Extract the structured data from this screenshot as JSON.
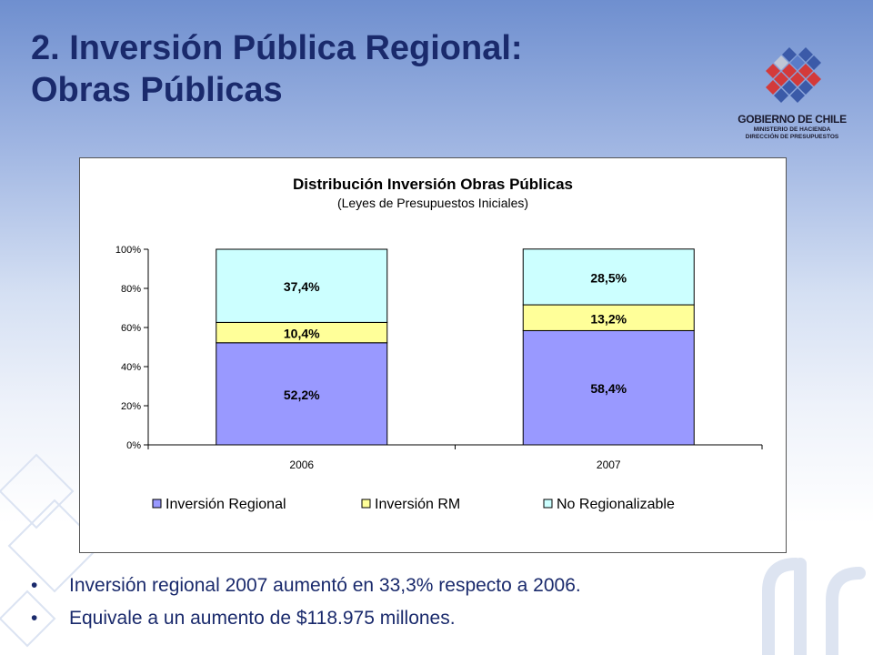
{
  "slide": {
    "title_line1": "2. Inversión Pública Regional:",
    "title_line2": "Obras Públicas"
  },
  "logo": {
    "main": "GOBIERNO DE CHILE",
    "sub1": "MINISTERIO DE HACIENDA",
    "sub2": "DIRECCIÓN DE PRESUPUESTOS"
  },
  "chart_data": {
    "type": "bar",
    "stacked": true,
    "title": "Distribución Inversión Obras Públicas",
    "subtitle": "(Leyes de Presupuestos Iniciales)",
    "categories": [
      "2006",
      "2007"
    ],
    "series": [
      {
        "name": "Inversión Regional",
        "values": [
          52.2,
          58.4
        ],
        "labels": [
          "52,2%",
          "58,4%"
        ],
        "color": "#9999ff"
      },
      {
        "name": "Inversión RM",
        "values": [
          10.4,
          13.2
        ],
        "labels": [
          "10,4%",
          "13,2%"
        ],
        "color": "#ffff99"
      },
      {
        "name": "No Regionalizable",
        "values": [
          37.4,
          28.5
        ],
        "labels": [
          "37,4%",
          "28,5%"
        ],
        "color": "#ccffff"
      }
    ],
    "ylim": [
      0,
      100
    ],
    "yticks": [
      "0%",
      "20%",
      "40%",
      "60%",
      "80%",
      "100%"
    ],
    "legend_position": "bottom",
    "grid": false
  },
  "bullets": [
    "Inversión regional 2007 aumentó en 33,3% respecto a 2006.",
    "Equivale a un aumento de $118.975 millones."
  ],
  "bullet_symbol": "•"
}
